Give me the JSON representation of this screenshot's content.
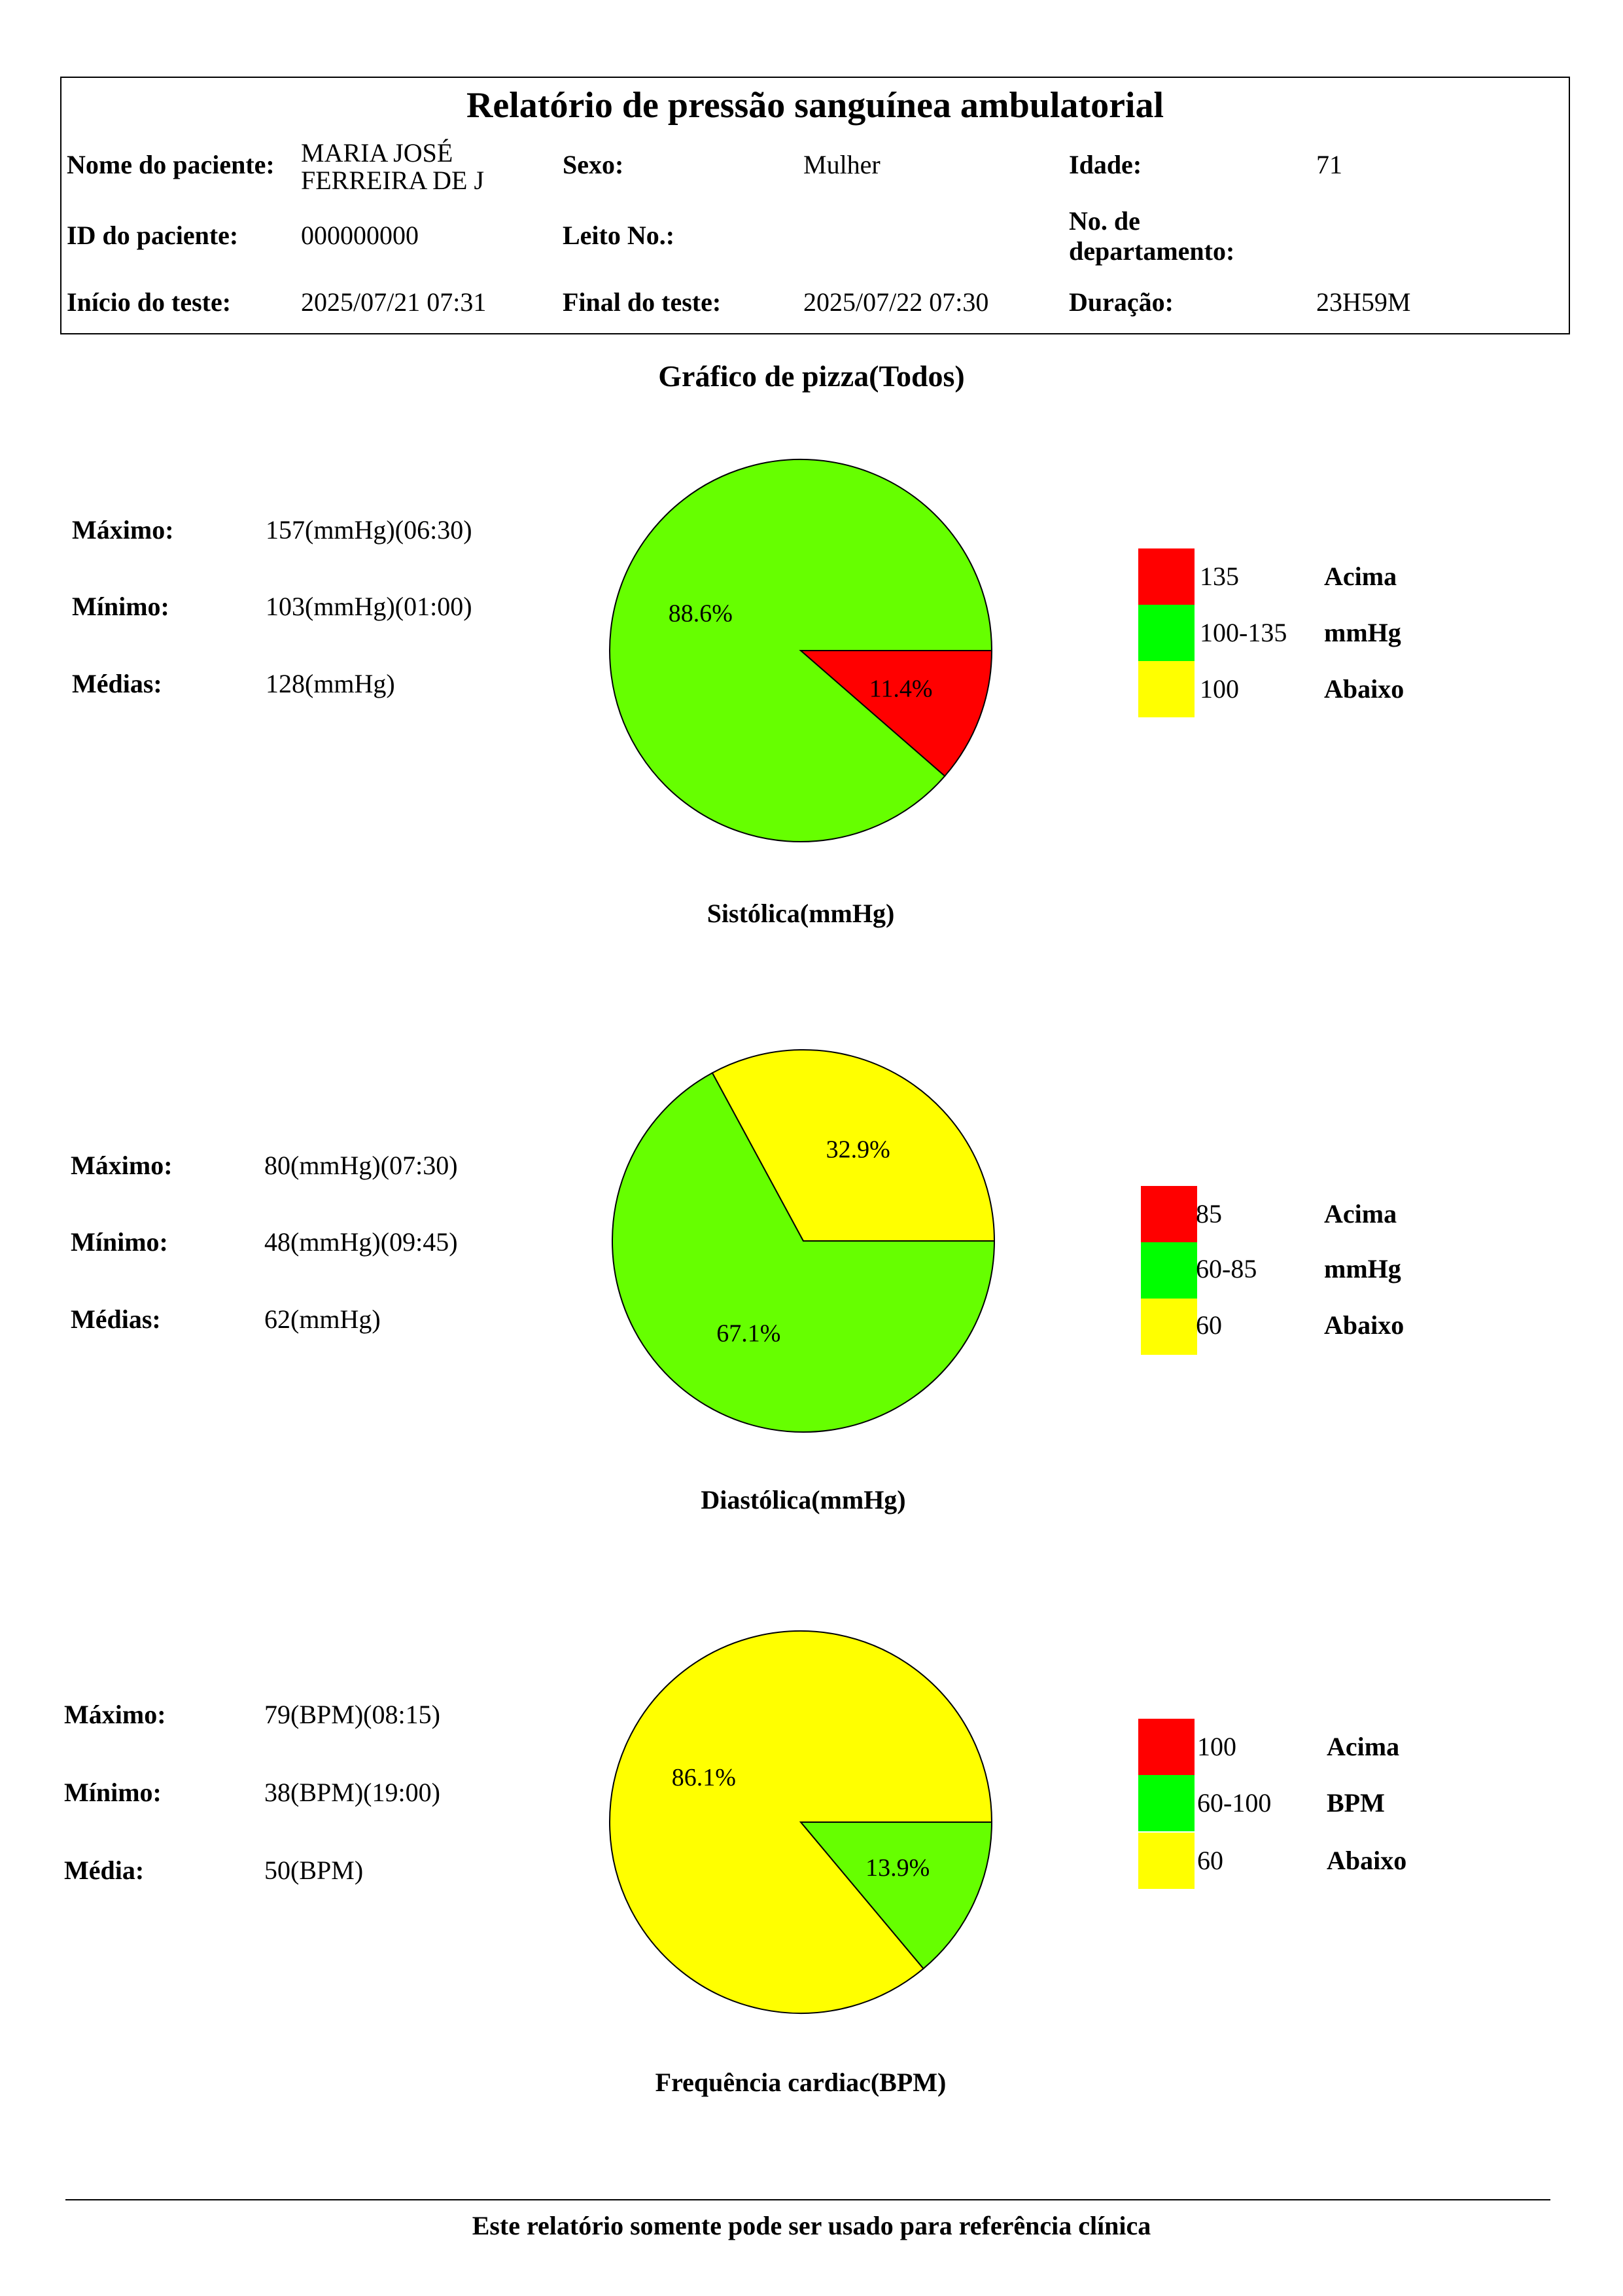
{
  "header": {
    "title": "Relatório de pressão sanguínea ambulatorial",
    "patient_name_label": "Nome do paciente:",
    "patient_name_line1": "MARIA JOSÉ",
    "patient_name_line2": "FERREIRA DE J",
    "sex_label": "Sexo:",
    "sex_value": "Mulher",
    "age_label": "Idade:",
    "age_value": "71",
    "patient_id_label": "ID do paciente:",
    "patient_id_value": "000000000",
    "bed_label": "Leito No.:",
    "bed_value": "",
    "dept_label_line1": "No. de",
    "dept_label_line2": "departamento:",
    "dept_value": "",
    "start_label": "Início do teste:",
    "start_value": "2025/07/21 07:31",
    "end_label": "Final do teste:",
    "end_value": "2025/07/22 07:30",
    "duration_label": "Duração:",
    "duration_value": "23H59M"
  },
  "section_title": "Gráfico de pizza(Todos)",
  "footer": "Este relatório somente pode ser usado para referência clínica",
  "colors": {
    "above": "#ff0000",
    "normal_slice": "#66ff00",
    "normal_legend": "#00ff00",
    "below": "#ffff00"
  },
  "chart_data": [
    {
      "type": "pie",
      "title": "Sistólica(mmHg)",
      "slices": [
        {
          "label": "11.4%",
          "value": 11.4,
          "category": "Acima",
          "color": "#ff0000"
        },
        {
          "label": "88.6%",
          "value": 88.6,
          "category": "mmHg",
          "color": "#66ff00"
        }
      ],
      "stats": [
        {
          "label": "Máximo:",
          "value": "157(mmHg)(06:30)"
        },
        {
          "label": "Mínimo:",
          "value": "103(mmHg)(01:00)"
        },
        {
          "label": "Médias:",
          "value": "128(mmHg)"
        }
      ],
      "legend": [
        {
          "range": "135",
          "desc": "Acima",
          "color": "#ff0000"
        },
        {
          "range": "100-135",
          "desc": "mmHg",
          "color": "#00ff00"
        },
        {
          "range": "100",
          "desc": "Abaixo",
          "color": "#ffff00"
        }
      ]
    },
    {
      "type": "pie",
      "title": "Diastólica(mmHg)",
      "slices": [
        {
          "label": "67.1%",
          "value": 67.1,
          "category": "mmHg",
          "color": "#66ff00"
        },
        {
          "label": "32.9%",
          "value": 32.9,
          "category": "Abaixo",
          "color": "#ffff00"
        }
      ],
      "stats": [
        {
          "label": "Máximo:",
          "value": "80(mmHg)(07:30)"
        },
        {
          "label": "Mínimo:",
          "value": "48(mmHg)(09:45)"
        },
        {
          "label": "Médias:",
          "value": "62(mmHg)"
        }
      ],
      "legend": [
        {
          "range": "85",
          "desc": "Acima",
          "color": "#ff0000"
        },
        {
          "range": "60-85",
          "desc": "mmHg",
          "color": "#00ff00"
        },
        {
          "range": "60",
          "desc": "Abaixo",
          "color": "#ffff00"
        }
      ]
    },
    {
      "type": "pie",
      "title": "Frequência cardiac(BPM)",
      "slices": [
        {
          "label": "13.9%",
          "value": 13.9,
          "category": "BPM",
          "color": "#66ff00"
        },
        {
          "label": "86.1%",
          "value": 86.1,
          "category": "Abaixo",
          "color": "#ffff00"
        }
      ],
      "stats": [
        {
          "label": "Máximo:",
          "value": "79(BPM)(08:15)"
        },
        {
          "label": "Mínimo:",
          "value": "38(BPM)(19:00)"
        },
        {
          "label": "Média:",
          "value": "50(BPM)"
        }
      ],
      "legend": [
        {
          "range": "100",
          "desc": "Acima",
          "color": "#ff0000"
        },
        {
          "range": "60-100",
          "desc": "BPM",
          "color": "#00ff00"
        },
        {
          "range": "60",
          "desc": "Abaixo",
          "color": "#ffff00"
        }
      ]
    }
  ]
}
